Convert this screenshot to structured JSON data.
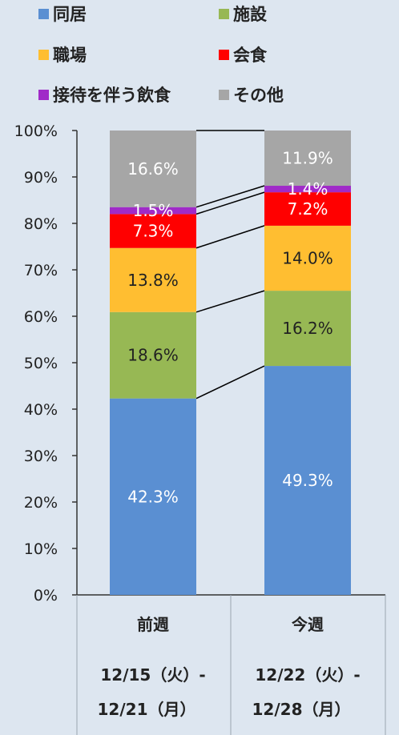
{
  "legend": {
    "items": [
      {
        "label": "同居",
        "color": "#5a8fd2"
      },
      {
        "label": "施設",
        "color": "#97b854"
      },
      {
        "label": "職場",
        "color": "#ffbe31"
      },
      {
        "label": "会食",
        "color": "#ff0000"
      },
      {
        "label": "接待を伴う飲食",
        "color": "#a02ac8"
      },
      {
        "label": "その他",
        "color": "#a6a6a6"
      }
    ]
  },
  "chart_data": {
    "type": "bar",
    "stacked": true,
    "percent_stacked": true,
    "categories": [
      {
        "line1": "前週",
        "line2": "12/15（火）-",
        "line3": "12/21（月）"
      },
      {
        "line1": "今週",
        "line2": "12/22（火）-",
        "line3": "12/28（月）"
      }
    ],
    "series": [
      {
        "name": "同居",
        "values": [
          42.3,
          49.3
        ],
        "labels": [
          "42.3%",
          "49.3%"
        ],
        "color": "#5a8fd2",
        "label_color": "#ffffff"
      },
      {
        "name": "施設",
        "values": [
          18.6,
          16.2
        ],
        "labels": [
          "18.6%",
          "16.2%"
        ],
        "color": "#97b854",
        "label_color": "#222222"
      },
      {
        "name": "職場",
        "values": [
          13.8,
          14.0
        ],
        "labels": [
          "13.8%",
          "14.0%"
        ],
        "color": "#ffbe31",
        "label_color": "#222222"
      },
      {
        "name": "会食",
        "values": [
          7.3,
          7.2
        ],
        "labels": [
          "7.3%",
          "7.2%"
        ],
        "color": "#ff0000",
        "label_color": "#ffffff"
      },
      {
        "name": "接待を伴う飲食",
        "values": [
          1.5,
          1.4
        ],
        "labels": [
          "1.5%",
          "1.4%"
        ],
        "color": "#a02ac8",
        "label_color": "#ffffff"
      },
      {
        "name": "その他",
        "values": [
          16.6,
          11.9
        ],
        "labels": [
          "16.6%",
          "11.9%"
        ],
        "color": "#a6a6a6",
        "label_color": "#ffffff"
      }
    ],
    "ylim": [
      0,
      100
    ],
    "yticks": [
      "0%",
      "10%",
      "20%",
      "30%",
      "40%",
      "50%",
      "60%",
      "70%",
      "80%",
      "90%",
      "100%"
    ],
    "series_lines": true,
    "grid": false,
    "legend_position": "top"
  }
}
